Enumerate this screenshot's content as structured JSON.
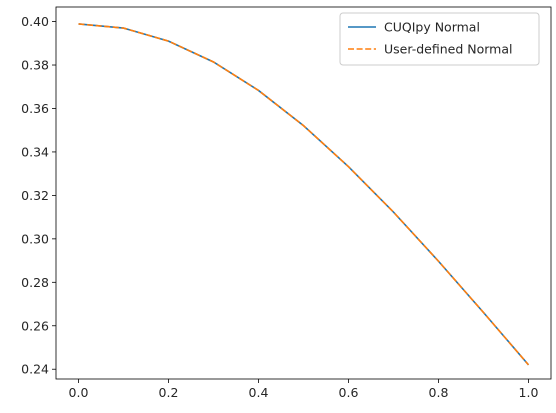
{
  "chart_data": {
    "type": "line",
    "title": "",
    "xlabel": "",
    "ylabel": "",
    "xlim": [
      -0.05,
      1.05
    ],
    "ylim": [
      0.2355,
      0.4067
    ],
    "xticks": [
      0.0,
      0.2,
      0.4,
      0.6,
      0.8,
      1.0
    ],
    "xtick_labels": [
      "0.0",
      "0.2",
      "0.4",
      "0.6",
      "0.8",
      "1.0"
    ],
    "yticks": [
      0.24,
      0.26,
      0.28,
      0.3,
      0.32,
      0.34,
      0.36,
      0.38,
      0.4
    ],
    "ytick_labels": [
      "0.24",
      "0.26",
      "0.28",
      "0.30",
      "0.32",
      "0.34",
      "0.36",
      "0.38",
      "0.40"
    ],
    "grid": false,
    "legend_position": "top-right",
    "x": [
      0.0,
      0.1,
      0.2,
      0.3,
      0.4,
      0.5,
      0.6,
      0.7,
      0.8,
      0.9,
      1.0
    ],
    "series": [
      {
        "name": "CUQIpy Normal",
        "style": "solid",
        "color": "#1f77b4",
        "values": [
          0.3989,
          0.397,
          0.391,
          0.3814,
          0.3683,
          0.3521,
          0.3332,
          0.3123,
          0.2897,
          0.2661,
          0.242
        ]
      },
      {
        "name": "User-defined Normal",
        "style": "dashed",
        "color": "#ff7f0e",
        "values": [
          0.3989,
          0.397,
          0.391,
          0.3814,
          0.3683,
          0.3521,
          0.3332,
          0.3123,
          0.2897,
          0.2661,
          0.242
        ]
      }
    ]
  }
}
